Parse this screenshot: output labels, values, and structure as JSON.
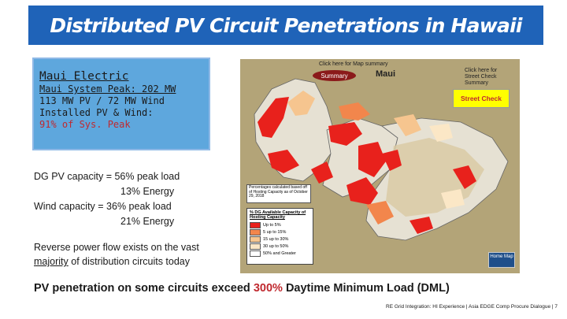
{
  "title": "Distributed PV Circuit Penetrations in Hawaii",
  "info": {
    "header": "Maui Electric",
    "line1": "Maui System Peak: 202 MW",
    "line2": "113 MW PV / 72 MW Wind",
    "line3": "Installed PV & Wind:",
    "line4": "91% of Sys. Peak"
  },
  "stats": {
    "dg_pv": "DG PV capacity = 56% peak load",
    "dg_pv_energy": "13% Energy",
    "wind": "Wind capacity = 36% peak load",
    "wind_energy": "21% Energy"
  },
  "reverse": {
    "text1": "Reverse power flow exists on the vast",
    "majority": "majority",
    "text2": " of distribution circuits today"
  },
  "pv_line": {
    "pre": "PV penetration on some circuits exceed ",
    "highlight": "300%",
    "post": " Daytime Minimum Load (DML)"
  },
  "footer": "RE Grid Integration: HI Experience | Asia EDGE Comp Procure Dialogue | 7",
  "map": {
    "click_summary": "Click here for Map summary",
    "summary_button": "Summary",
    "island": "Maui",
    "click_street": "Click here for Street Check Summary",
    "street_button": "Street Check",
    "note": "Percentages calculated based off of Hosting Capacity as of October 29, 2018",
    "home_button": "Home Map",
    "legend_title": "% DG Available Capacity of Hosting Capacity",
    "legend_items": [
      {
        "label": "Up to 5%",
        "color": "#e8211c"
      },
      {
        "label": "5 up to 15%",
        "color": "#f2864c"
      },
      {
        "label": "15 up to 30%",
        "color": "#f6c58f"
      },
      {
        "label": "30 up to 50%",
        "color": "#fbe7c6"
      },
      {
        "label": "50% and Greater",
        "color": "#ffffff"
      }
    ]
  },
  "colors": {
    "title_bg": "#1f63b8",
    "info_bg": "#5ea7dd",
    "highlight_red": "#c0292f",
    "map_bg": "#b3a478"
  }
}
